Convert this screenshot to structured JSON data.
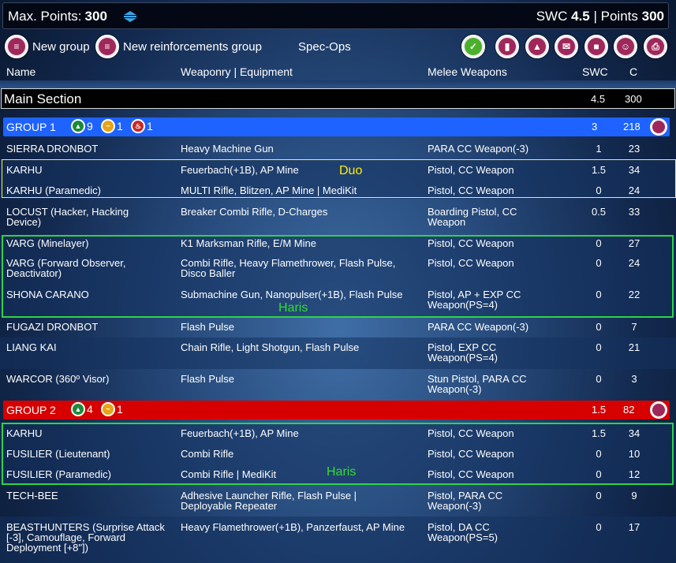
{
  "topbar": {
    "max_points_label": "Max. Points:",
    "max_points_value": "300",
    "swc_label": "SWC",
    "swc_value": "4.5",
    "points_label": "| Points",
    "points_value": "300"
  },
  "toolbar": {
    "new_group_label": "New group",
    "new_reinforcements_label": "New reinforcements group",
    "specops_label": "Spec-Ops"
  },
  "columns": {
    "name": "Name",
    "weaponry": "Weaponry | Equipment",
    "melee": "Melee Weapons",
    "swc": "SWC",
    "c": "C"
  },
  "main_section": {
    "title": "Main Section",
    "swc": "4.5",
    "points": "300"
  },
  "groups": [
    {
      "name": "GROUP 1",
      "color": "#1e63ff",
      "swc": "3",
      "points": "218",
      "badges": [
        {
          "icon": "regular-order-icon",
          "count": "9",
          "color": "#1c8a3a"
        },
        {
          "icon": "irregular-order-icon",
          "count": "1",
          "color": "#e6a417"
        },
        {
          "icon": "impetuous-order-icon",
          "count": "1",
          "color": "#c62828"
        }
      ]
    },
    {
      "name": "GROUP 2",
      "color": "#d70000",
      "swc": "1.5",
      "points": "82",
      "badges": [
        {
          "icon": "regular-order-icon",
          "count": "4",
          "color": "#1c8a3a"
        },
        {
          "icon": "irregular-order-icon",
          "count": "1",
          "color": "#e6a417"
        }
      ]
    }
  ],
  "units": [
    {
      "name": "SIERRA DRONBOT",
      "weapons": "Heavy Machine Gun",
      "melee": "PARA CC Weapon(-3)",
      "swc": "1",
      "c": "23"
    },
    {
      "name": "KARHU",
      "weapons": "Feuerbach(+1B), AP Mine",
      "melee": "Pistol, CC Weapon",
      "swc": "1.5",
      "c": "34"
    },
    {
      "name": "KARHU (Paramedic)",
      "weapons": "MULTI Rifle, Blitzen, AP Mine | MediKit",
      "melee": "Pistol, CC Weapon",
      "swc": "0",
      "c": "24"
    },
    {
      "name": "LOCUST (Hacker, Hacking Device)",
      "weapons": "Breaker Combi Rifle, D-Charges",
      "melee": "Boarding Pistol, CC Weapon",
      "swc": "0.5",
      "c": "33"
    },
    {
      "name": "VARG (Minelayer)",
      "weapons": "K1 Marksman Rifle, E/M Mine",
      "melee": "Pistol, CC Weapon",
      "swc": "0",
      "c": "27"
    },
    {
      "name": "VARG (Forward Observer, Deactivator)",
      "weapons": "Combi Rifle, Heavy Flamethrower, Flash Pulse, Disco Baller",
      "melee": "Pistol, CC Weapon",
      "swc": "0",
      "c": "24"
    },
    {
      "name": "SHONA CARANO",
      "weapons": "Submachine Gun, Nanopulser(+1B), Flash Pulse",
      "melee": "Pistol, AP + EXP CC Weapon(PS=4)",
      "swc": "0",
      "c": "22"
    },
    {
      "name": "FUGAZI DRONBOT",
      "weapons": "Flash Pulse",
      "melee": "PARA CC Weapon(-3)",
      "swc": "0",
      "c": "7"
    },
    {
      "name": "LIANG KAI",
      "weapons": "Chain Rifle, Light Shotgun, Flash Pulse",
      "melee": "Pistol, EXP CC Weapon(PS=4)",
      "swc": "0",
      "c": "21"
    },
    {
      "name": "WARCOR (360º Visor)",
      "weapons": "Flash Pulse",
      "melee": "Stun Pistol, PARA CC Weapon(-3)",
      "swc": "0",
      "c": "3"
    },
    {
      "name": "KARHU",
      "weapons": "Feuerbach(+1B), AP Mine",
      "melee": "Pistol, CC Weapon",
      "swc": "1.5",
      "c": "34"
    },
    {
      "name": "FUSILIER (Lieutenant)",
      "weapons": "Combi Rifle",
      "melee": "Pistol, CC Weapon",
      "swc": "0",
      "c": "10"
    },
    {
      "name": "FUSILIER (Paramedic)",
      "weapons": "Combi Rifle | MediKit",
      "melee": "Pistol, CC Weapon",
      "swc": "0",
      "c": "12"
    },
    {
      "name": "TECH-BEE",
      "weapons": "Adhesive Launcher Rifle, Flash Pulse | Deployable Repeater",
      "melee": "Pistol, PARA CC Weapon(-3)",
      "swc": "0",
      "c": "9"
    },
    {
      "name": "BEASTHUNTERS (Surprise Attack [-3], Camouflage, Forward Deployment [+8\"])",
      "weapons": "Heavy Flamethrower(+1B), Panzerfaust, AP Mine",
      "melee": "Pistol, DA CC Weapon(PS=5)",
      "swc": "0",
      "c": "17"
    }
  ],
  "annotations": {
    "duo": "Duo",
    "haris1": "Haris",
    "haris2": "Haris"
  },
  "colors": {
    "duo_outline": "#ffee44",
    "haris_outline": "#2ed34a",
    "accent_icon": "#a0275a"
  }
}
